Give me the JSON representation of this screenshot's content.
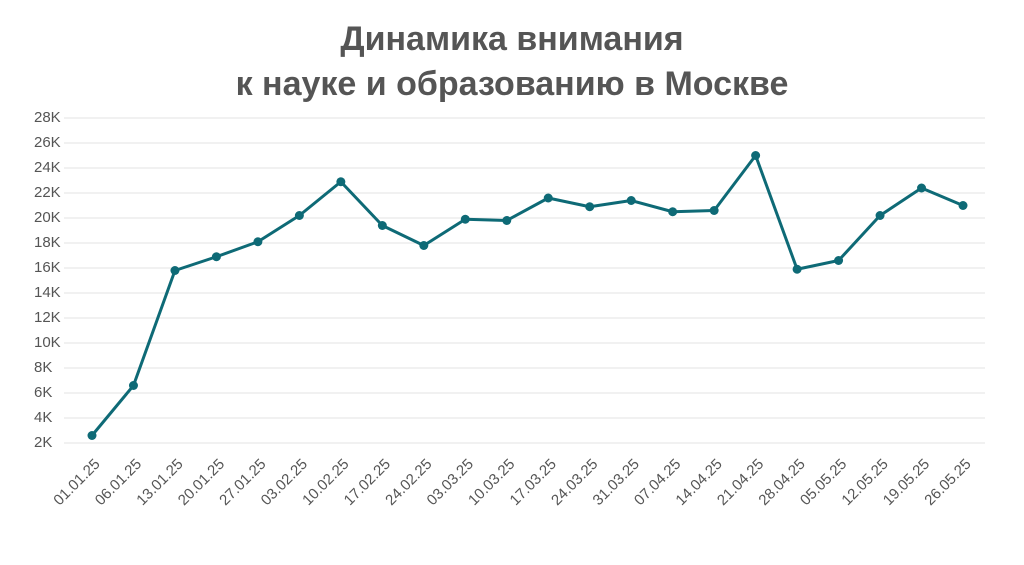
{
  "chart_data": {
    "type": "line",
    "title": [
      "Динамика внимания",
      "к науке и образованию в Москве"
    ],
    "categories": [
      "01.01.25",
      "06.01.25",
      "13.01.25",
      "20.01.25",
      "27.01.25",
      "03.02.25",
      "10.02.25",
      "17.02.25",
      "24.02.25",
      "03.03.25",
      "10.03.25",
      "17.03.25",
      "24.03.25",
      "31.03.25",
      "07.04.25",
      "14.04.25",
      "21.04.25",
      "28.04.25",
      "05.05.25",
      "12.05.25",
      "19.05.25",
      "26.05.25"
    ],
    "values": [
      2600,
      6600,
      15800,
      16900,
      18100,
      20200,
      22900,
      19400,
      17800,
      19900,
      19800,
      21600,
      20900,
      21400,
      20500,
      20600,
      25000,
      15900,
      16600,
      20200,
      22400,
      21000
    ],
    "color": "#0e6a76",
    "ylim": [
      2000,
      28000
    ],
    "yticks": [
      {
        "value": 2000,
        "label": "2K"
      },
      {
        "value": 4000,
        "label": "4K"
      },
      {
        "value": 6000,
        "label": "6K"
      },
      {
        "value": 8000,
        "label": "8K"
      },
      {
        "value": 10000,
        "label": "10K"
      },
      {
        "value": 12000,
        "label": "12K"
      },
      {
        "value": 14000,
        "label": "14K"
      },
      {
        "value": 16000,
        "label": "16K"
      },
      {
        "value": 18000,
        "label": "18K"
      },
      {
        "value": 20000,
        "label": "20K"
      },
      {
        "value": 22000,
        "label": "22K"
      },
      {
        "value": 24000,
        "label": "24K"
      },
      {
        "value": 26000,
        "label": "26K"
      },
      {
        "value": 28000,
        "label": "28K"
      }
    ],
    "grid": true
  }
}
